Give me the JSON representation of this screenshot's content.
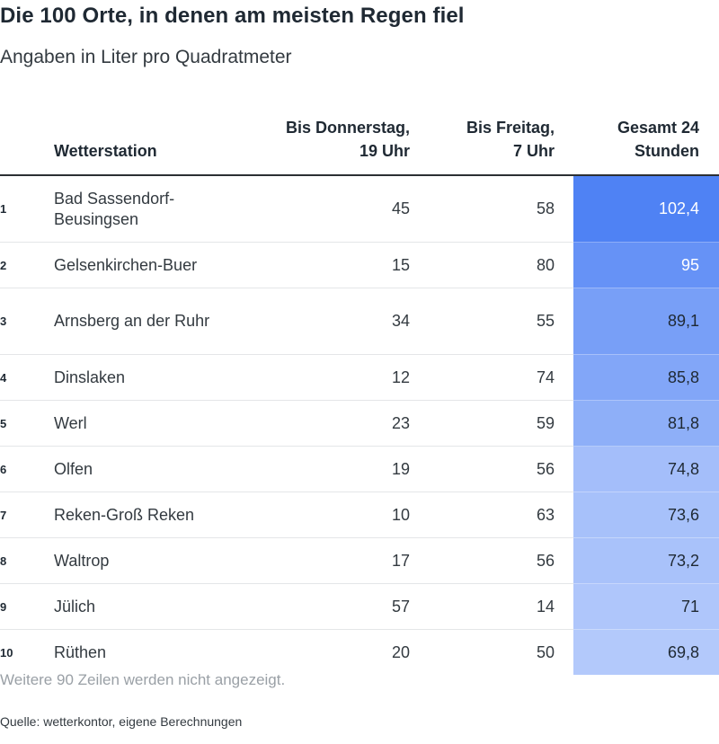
{
  "title": "Die 100 Orte, in denen am meisten Regen fiel",
  "subtitle": "Angaben in Liter pro Quadratmeter",
  "note": "Weitere 90 Zeilen werden nicht angezeigt.",
  "source": "Quelle: wetterkontor, eigene Berechnungen",
  "colors": {
    "total_high": "#4f82f4",
    "total_low": "#b3c9fb"
  },
  "chart_data": {
    "type": "table",
    "columns": [
      "",
      "Wetterstation",
      "Bis Donnerstag, 19 Uhr",
      "Bis Freitag, 7 Uhr",
      "Gesamt 24 Stunden"
    ],
    "rows": [
      {
        "rank": "1",
        "name": "Bad Sassendorf-Beusingsen",
        "thu": "45",
        "fri": "58",
        "total": "102,4",
        "total_value": 102.4
      },
      {
        "rank": "2",
        "name": "Gelsenkirchen-Buer",
        "thu": "15",
        "fri": "80",
        "total": "95",
        "total_value": 95
      },
      {
        "rank": "3",
        "name": "Arnsberg an der Ruhr",
        "thu": "34",
        "fri": "55",
        "total": "89,1",
        "total_value": 89.1
      },
      {
        "rank": "4",
        "name": "Dinslaken",
        "thu": "12",
        "fri": "74",
        "total": "85,8",
        "total_value": 85.8
      },
      {
        "rank": "5",
        "name": "Werl",
        "thu": "23",
        "fri": "59",
        "total": "81,8",
        "total_value": 81.8
      },
      {
        "rank": "6",
        "name": "Olfen",
        "thu": "19",
        "fri": "56",
        "total": "74,8",
        "total_value": 74.8
      },
      {
        "rank": "7",
        "name": "Reken-Groß Reken",
        "thu": "10",
        "fri": "63",
        "total": "73,6",
        "total_value": 73.6
      },
      {
        "rank": "8",
        "name": "Waltrop",
        "thu": "17",
        "fri": "56",
        "total": "73,2",
        "total_value": 73.2
      },
      {
        "rank": "9",
        "name": "Jülich",
        "thu": "57",
        "fri": "14",
        "total": "71",
        "total_value": 71
      },
      {
        "rank": "10",
        "name": "Rüthen",
        "thu": "20",
        "fri": "50",
        "total": "69,8",
        "total_value": 69.8
      }
    ]
  }
}
